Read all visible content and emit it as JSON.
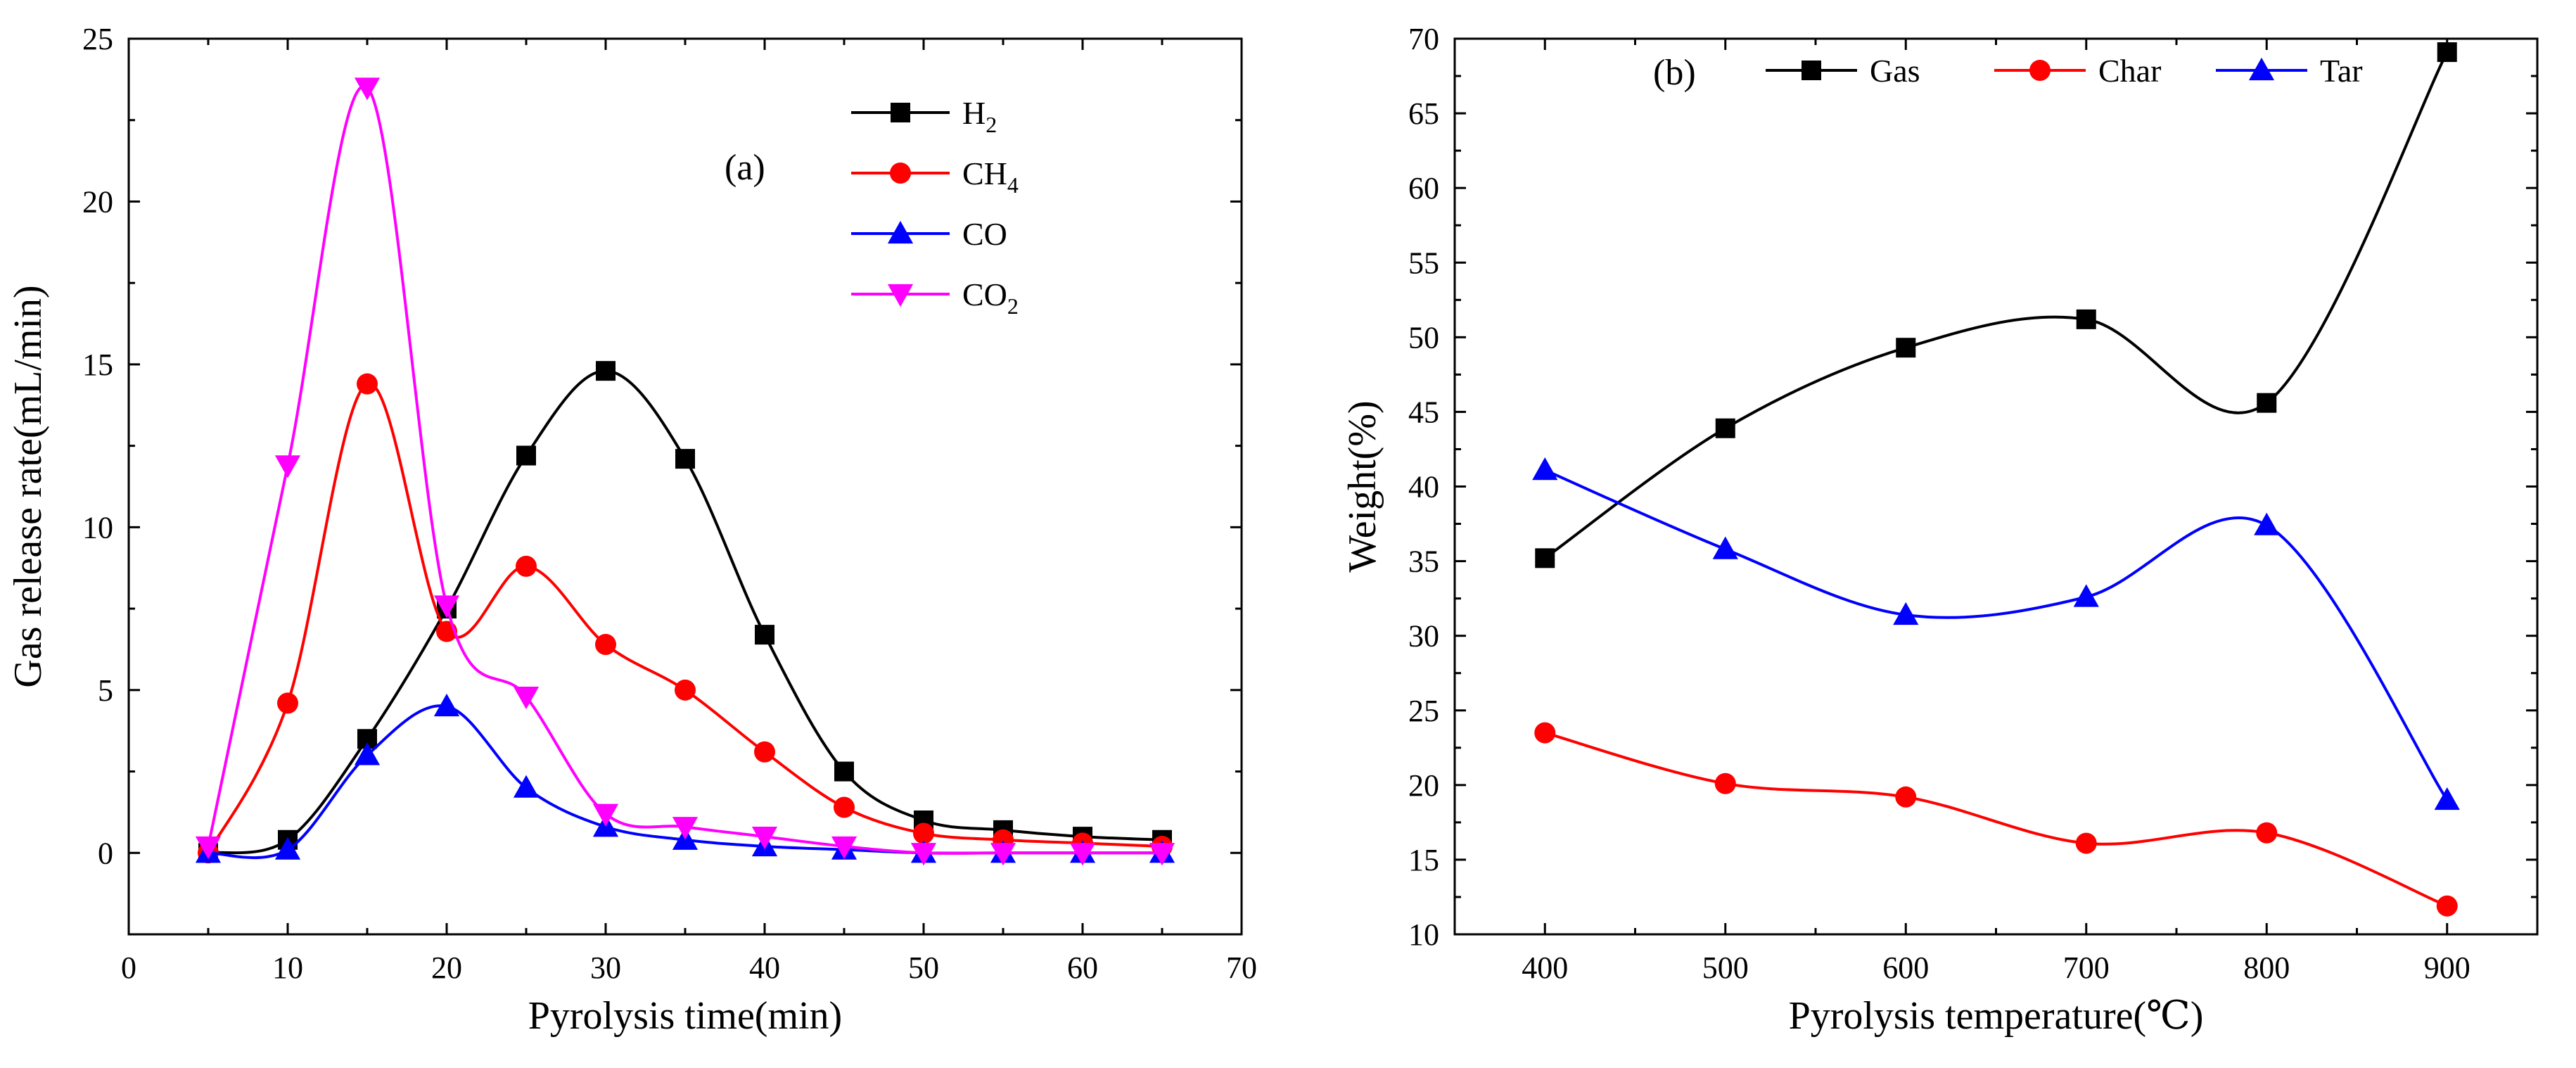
{
  "chart_data": [
    {
      "type": "line",
      "panel_label": "(a)",
      "xlabel": "Pyrolysis time(min)",
      "ylabel": "Gas release rate(mL/min)",
      "xlim": [
        0,
        70
      ],
      "ylim": [
        -2.5,
        25
      ],
      "xticks": [
        0,
        10,
        20,
        30,
        40,
        50,
        60,
        70
      ],
      "yticks": [
        0,
        5,
        10,
        15,
        20,
        25
      ],
      "x": [
        5,
        10,
        15,
        20,
        25,
        30,
        35,
        40,
        45,
        50,
        55,
        60,
        65
      ],
      "legend_position": "top-right",
      "series": [
        {
          "name": "H2",
          "label_main": "H",
          "label_sub": "2",
          "color": "#000000",
          "marker": "square",
          "values": [
            0.0,
            0.4,
            3.5,
            7.5,
            12.2,
            14.8,
            12.1,
            6.7,
            2.5,
            1.0,
            0.7,
            0.5,
            0.4
          ]
        },
        {
          "name": "CH4",
          "label_main": "CH",
          "label_sub": "4",
          "color": "#ff0000",
          "marker": "circle",
          "values": [
            0.0,
            4.6,
            14.4,
            6.8,
            8.8,
            6.4,
            5.0,
            3.1,
            1.4,
            0.6,
            0.4,
            0.3,
            0.2
          ]
        },
        {
          "name": "CO",
          "label_main": "CO",
          "label_sub": "",
          "color": "#0000ff",
          "marker": "triangle-up",
          "values": [
            0.0,
            0.1,
            3.0,
            4.5,
            2.0,
            0.8,
            0.4,
            0.2,
            0.1,
            0.0,
            0.0,
            0.0,
            0.0
          ]
        },
        {
          "name": "CO2",
          "label_main": "CO",
          "label_sub": "2",
          "color": "#ff00ff",
          "marker": "triangle-down",
          "values": [
            0.2,
            11.9,
            23.5,
            7.6,
            4.8,
            1.2,
            0.8,
            0.5,
            0.2,
            0.0,
            0.0,
            0.0,
            0.0
          ]
        }
      ]
    },
    {
      "type": "line",
      "panel_label": "(b)",
      "xlabel": "Pyrolysis temperature(℃)",
      "ylabel": "Weight(%)",
      "xlim": [
        350,
        950
      ],
      "ylim": [
        10,
        70
      ],
      "xticks": [
        400,
        500,
        600,
        700,
        800,
        900
      ],
      "yticks": [
        10,
        15,
        20,
        25,
        30,
        35,
        40,
        45,
        50,
        55,
        60,
        65,
        70
      ],
      "x": [
        400,
        500,
        600,
        700,
        800,
        900
      ],
      "legend_position": "top-left",
      "series": [
        {
          "name": "Gas",
          "label_main": "Gas",
          "label_sub": "",
          "color": "#000000",
          "marker": "square",
          "values": [
            35.2,
            43.9,
            49.3,
            51.2,
            45.6,
            69.1
          ]
        },
        {
          "name": "Char",
          "label_main": "Char",
          "label_sub": "",
          "color": "#ff0000",
          "marker": "circle",
          "values": [
            23.5,
            20.1,
            19.2,
            16.1,
            16.8,
            11.9
          ]
        },
        {
          "name": "Tar",
          "label_main": "Tar",
          "label_sub": "",
          "color": "#0000ff",
          "marker": "triangle-up",
          "values": [
            41.1,
            35.8,
            31.4,
            32.6,
            37.4,
            19.0
          ]
        }
      ]
    }
  ]
}
